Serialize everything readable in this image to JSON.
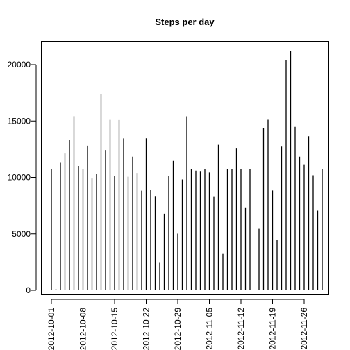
{
  "chart_data": {
    "type": "bar",
    "title": "Steps per day",
    "xlabel": "",
    "ylabel": "",
    "ylim": [
      0,
      22000
    ],
    "y_ticks": [
      0,
      5000,
      10000,
      15000,
      20000
    ],
    "x_ticks": [
      "2012-10-01",
      "2012-10-08",
      "2012-10-15",
      "2012-10-22",
      "2012-10-29",
      "2012-11-05",
      "2012-11-12",
      "2012-11-19",
      "2012-11-26"
    ],
    "grid": false,
    "legend": "none",
    "categories": [
      "2012-10-01",
      "2012-10-02",
      "2012-10-03",
      "2012-10-04",
      "2012-10-05",
      "2012-10-06",
      "2012-10-07",
      "2012-10-08",
      "2012-10-09",
      "2012-10-10",
      "2012-10-11",
      "2012-10-12",
      "2012-10-13",
      "2012-10-14",
      "2012-10-15",
      "2012-10-16",
      "2012-10-17",
      "2012-10-18",
      "2012-10-19",
      "2012-10-20",
      "2012-10-21",
      "2012-10-22",
      "2012-10-23",
      "2012-10-24",
      "2012-10-25",
      "2012-10-26",
      "2012-10-27",
      "2012-10-28",
      "2012-10-29",
      "2012-10-30",
      "2012-10-31",
      "2012-11-01",
      "2012-11-02",
      "2012-11-03",
      "2012-11-04",
      "2012-11-05",
      "2012-11-06",
      "2012-11-07",
      "2012-11-08",
      "2012-11-09",
      "2012-11-10",
      "2012-11-11",
      "2012-11-12",
      "2012-11-13",
      "2012-11-14",
      "2012-11-15",
      "2012-11-16",
      "2012-11-17",
      "2012-11-18",
      "2012-11-19",
      "2012-11-20",
      "2012-11-21",
      "2012-11-22",
      "2012-11-23",
      "2012-11-24",
      "2012-11-25",
      "2012-11-26",
      "2012-11-27",
      "2012-11-28",
      "2012-11-29",
      "2012-11-30"
    ],
    "values": [
      10766,
      126,
      11352,
      12116,
      13294,
      15420,
      11015,
      10766,
      12811,
      9900,
      10304,
      17382,
      12426,
      15098,
      10139,
      15084,
      13452,
      10056,
      11829,
      10395,
      8821,
      13460,
      8918,
      8355,
      2492,
      6778,
      10119,
      11458,
      5018,
      9819,
      15414,
      10766,
      10600,
      10571,
      10766,
      10439,
      8334,
      12883,
      3219,
      10766,
      10766,
      12608,
      10765,
      7336,
      10766,
      41,
      5441,
      14339,
      15110,
      8841,
      4472,
      12787,
      20427,
      21194,
      14478,
      11834,
      11162,
      13646,
      10183,
      7047,
      10766
    ],
    "colors": {
      "bar": "#000000",
      "axis": "#000000",
      "background": "#ffffff"
    }
  }
}
